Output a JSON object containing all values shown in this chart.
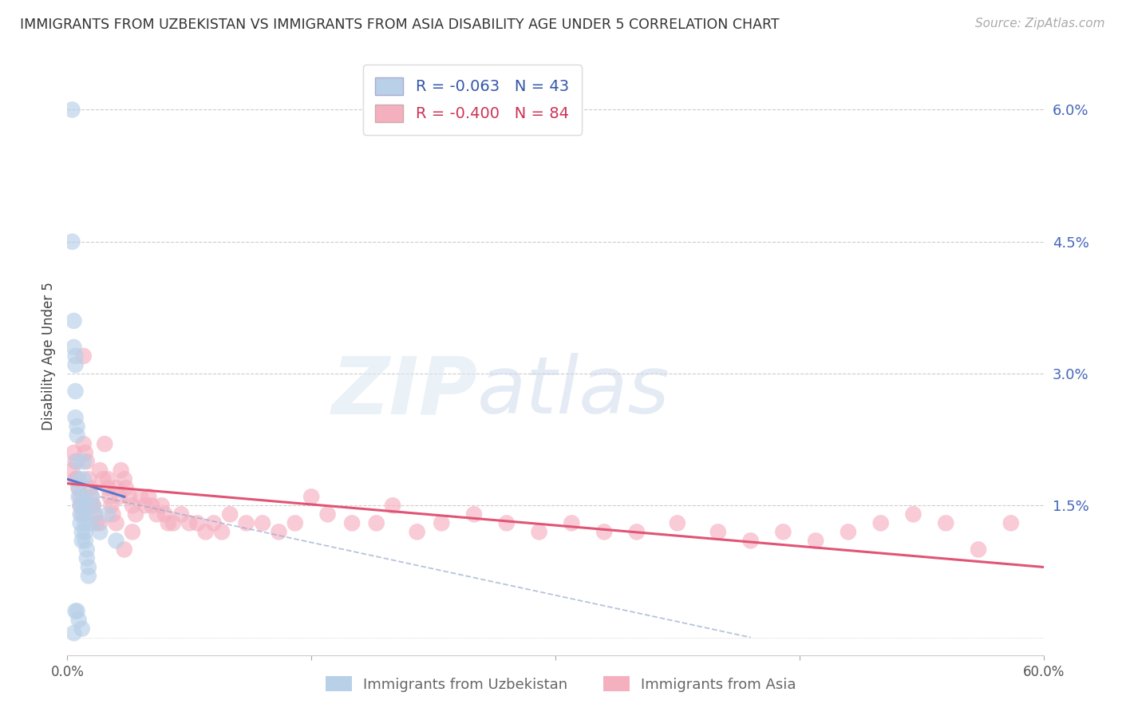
{
  "title": "IMMIGRANTS FROM UZBEKISTAN VS IMMIGRANTS FROM ASIA DISABILITY AGE UNDER 5 CORRELATION CHART",
  "source": "Source: ZipAtlas.com",
  "ylabel": "Disability Age Under 5",
  "yticks": [
    0.0,
    0.015,
    0.03,
    0.045,
    0.06
  ],
  "ytick_labels": [
    "",
    "1.5%",
    "3.0%",
    "4.5%",
    "6.0%"
  ],
  "xlim": [
    0.0,
    0.6
  ],
  "ylim": [
    -0.002,
    0.066
  ],
  "legend_uzb_R": "-0.063",
  "legend_uzb_N": "43",
  "legend_asia_R": "-0.400",
  "legend_asia_N": "84",
  "color_uzb": "#b8d0e8",
  "color_asia": "#f5b0c0",
  "color_uzb_line": "#5577cc",
  "color_asia_line": "#e05575",
  "color_uzb_dashed": "#99aacc",
  "uzb_scatter_x": [
    0.003,
    0.003,
    0.004,
    0.004,
    0.004,
    0.005,
    0.005,
    0.005,
    0.005,
    0.005,
    0.006,
    0.006,
    0.006,
    0.006,
    0.007,
    0.007,
    0.007,
    0.007,
    0.008,
    0.008,
    0.008,
    0.009,
    0.009,
    0.009,
    0.01,
    0.01,
    0.01,
    0.01,
    0.01,
    0.011,
    0.011,
    0.011,
    0.012,
    0.012,
    0.013,
    0.013,
    0.014,
    0.015,
    0.016,
    0.017,
    0.02,
    0.025,
    0.03
  ],
  "uzb_scatter_y": [
    0.06,
    0.045,
    0.036,
    0.033,
    0.0005,
    0.032,
    0.031,
    0.028,
    0.025,
    0.003,
    0.024,
    0.023,
    0.02,
    0.003,
    0.018,
    0.017,
    0.016,
    0.002,
    0.015,
    0.014,
    0.013,
    0.012,
    0.011,
    0.001,
    0.02,
    0.018,
    0.016,
    0.015,
    0.014,
    0.013,
    0.012,
    0.011,
    0.01,
    0.009,
    0.008,
    0.007,
    0.013,
    0.016,
    0.015,
    0.014,
    0.012,
    0.014,
    0.011
  ],
  "asia_scatter_x": [
    0.003,
    0.004,
    0.005,
    0.006,
    0.007,
    0.008,
    0.009,
    0.01,
    0.011,
    0.012,
    0.013,
    0.014,
    0.015,
    0.016,
    0.017,
    0.018,
    0.02,
    0.022,
    0.023,
    0.025,
    0.026,
    0.027,
    0.028,
    0.03,
    0.032,
    0.033,
    0.035,
    0.036,
    0.038,
    0.04,
    0.042,
    0.045,
    0.048,
    0.05,
    0.052,
    0.055,
    0.058,
    0.06,
    0.062,
    0.065,
    0.07,
    0.075,
    0.08,
    0.085,
    0.09,
    0.095,
    0.1,
    0.11,
    0.12,
    0.13,
    0.14,
    0.15,
    0.16,
    0.175,
    0.19,
    0.2,
    0.215,
    0.23,
    0.25,
    0.27,
    0.29,
    0.31,
    0.33,
    0.35,
    0.375,
    0.4,
    0.42,
    0.44,
    0.46,
    0.48,
    0.5,
    0.52,
    0.54,
    0.56,
    0.58,
    0.005,
    0.008,
    0.01,
    0.015,
    0.02,
    0.025,
    0.03,
    0.035,
    0.04
  ],
  "asia_scatter_y": [
    0.019,
    0.021,
    0.02,
    0.018,
    0.017,
    0.016,
    0.014,
    0.022,
    0.021,
    0.02,
    0.018,
    0.017,
    0.016,
    0.015,
    0.014,
    0.013,
    0.019,
    0.018,
    0.022,
    0.017,
    0.016,
    0.015,
    0.014,
    0.017,
    0.016,
    0.019,
    0.018,
    0.017,
    0.016,
    0.015,
    0.014,
    0.016,
    0.015,
    0.016,
    0.015,
    0.014,
    0.015,
    0.014,
    0.013,
    0.013,
    0.014,
    0.013,
    0.013,
    0.012,
    0.013,
    0.012,
    0.014,
    0.013,
    0.013,
    0.012,
    0.013,
    0.016,
    0.014,
    0.013,
    0.013,
    0.015,
    0.012,
    0.013,
    0.014,
    0.013,
    0.012,
    0.013,
    0.012,
    0.012,
    0.013,
    0.012,
    0.011,
    0.012,
    0.011,
    0.012,
    0.013,
    0.014,
    0.013,
    0.01,
    0.013,
    0.018,
    0.015,
    0.032,
    0.015,
    0.013,
    0.018,
    0.013,
    0.01,
    0.012
  ],
  "uzb_line_x0": 0.0,
  "uzb_line_x1": 0.035,
  "uzb_line_y0": 0.018,
  "uzb_line_y1": 0.016,
  "asia_line_x0": 0.0,
  "asia_line_x1": 0.6,
  "asia_line_y0": 0.0175,
  "asia_line_y1": 0.008,
  "dash_line_x0": 0.02,
  "dash_line_x1": 0.42,
  "dash_line_y0": 0.016,
  "dash_line_y1": 0.0
}
